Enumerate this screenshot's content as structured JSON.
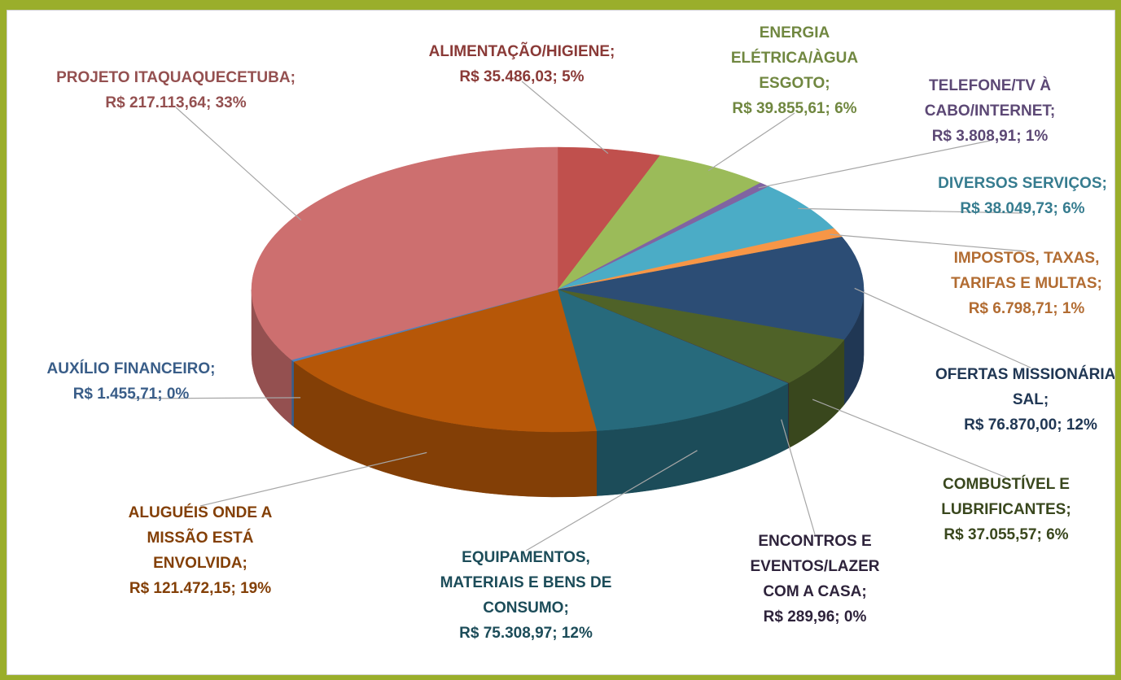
{
  "chart_data": {
    "type": "pie",
    "categories": [
      "ALIMENTAÇÃO/HIGIENE;",
      "ENERGIA ELÉTRICA/ÀGUA ESGOTO;",
      "TELEFONE/TV À CABO/INTERNET;",
      "DIVERSOS SERVIÇOS;",
      "IMPOSTOS, TAXAS, TARIFAS E MULTAS;",
      "OFERTAS MISSIONÁRIAS SAL;",
      "COMBUSTÍVEL E LUBRIFICANTES;",
      "ENCONTROS E EVENTOS/LAZER COM A CASA;",
      "EQUIPAMENTOS, MATERIAIS E BENS DE CONSUMO;",
      "ALUGUÉIS ONDE A MISSÃO ESTÁ ENVOLVIDA;",
      "AUXÍLIO FINANCEIRO;",
      "PROJETO ITAQUAQUECETUBA;"
    ],
    "values": [
      35486.03,
      39855.61,
      3808.91,
      38049.73,
      6798.71,
      76870.0,
      37055.57,
      289.96,
      75308.97,
      121472.15,
      1455.71,
      217113.64
    ],
    "value_labels": [
      "R$ 35.486,03; 5%",
      "R$ 39.855,61; 6%",
      "R$ 3.808,91; 1%",
      "R$ 38.049,73; 6%",
      "R$ 6.798,71; 1%",
      "R$ 76.870,00; 12%",
      "R$ 37.055,57; 6%",
      "R$ 289,96; 0%",
      "R$ 75.308,97; 12%",
      "R$ 121.472,15; 19%",
      "R$ 1.455,71; 0%",
      "R$ 217.113,64; 33%"
    ],
    "colors": [
      "#c0504d",
      "#9bbb59",
      "#8064a2",
      "#4bacc6",
      "#f79646",
      "#2c4d75",
      "#4f6228",
      "#403152",
      "#276a7c",
      "#b65708",
      "#4f81bd",
      "#cd6f6f"
    ]
  }
}
